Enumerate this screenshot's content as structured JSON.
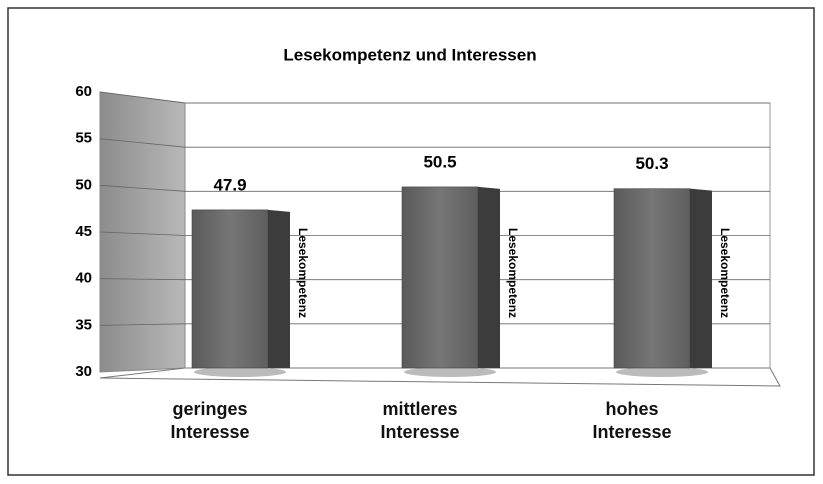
{
  "chart_data": {
    "type": "bar3d",
    "title": "Lesekompetenz und Interessen",
    "categories": [
      "geringes Interesse",
      "mittleres Interesse",
      "hohes Interesse"
    ],
    "series": [
      {
        "name": "Lesekompetenz",
        "color": "#6b6b6b",
        "values": [
          47.9,
          50.5,
          50.3
        ]
      }
    ],
    "ylim": [
      30,
      60
    ],
    "yticks": [
      30,
      35,
      40,
      45,
      50,
      55,
      60
    ],
    "grid": true
  }
}
